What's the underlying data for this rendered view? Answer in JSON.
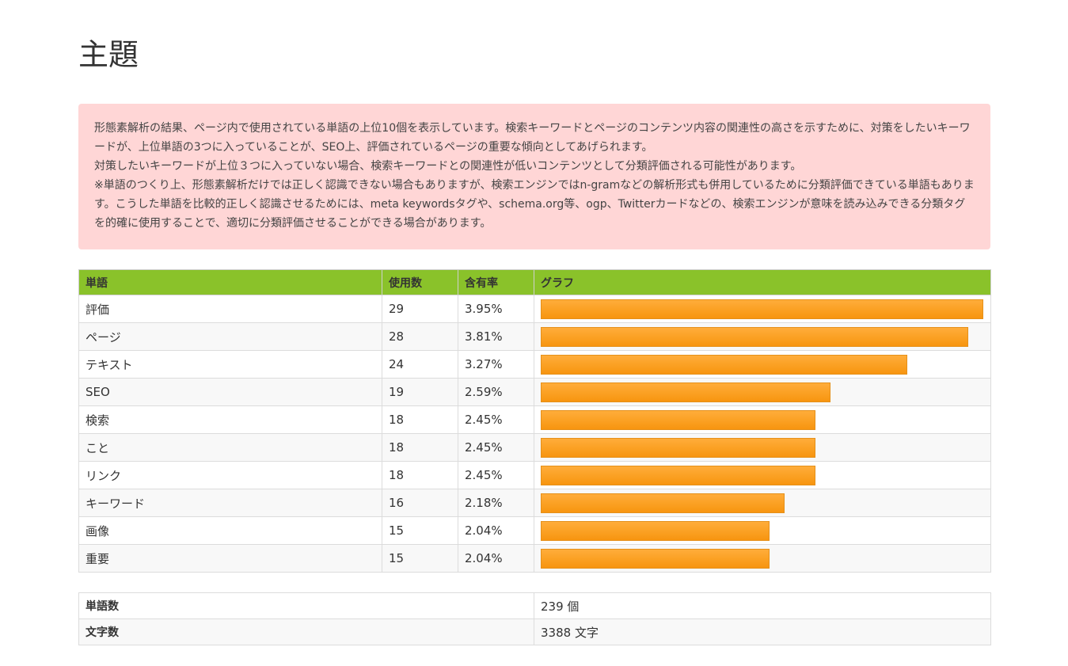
{
  "page": {
    "title": "主題"
  },
  "notice": {
    "paragraphs": [
      "形態素解析の結果、ページ内で使用されている単語の上位10個を表示しています。検索キーワードとページのコンテンツ内容の関連性の高さを示すために、対策をしたいキーワードが、上位単語の3つに入っていることが、SEO上、評価されているページの重要な傾向としてあげられます。",
      "対策したいキーワードが上位３つに入っていない場合、検索キーワードとの関連性が低いコンテンツとして分類評価される可能性があります。",
      "※単語のつくり上、形態素解析だけでは正しく認識できない場合もありますが、検索エンジンではn-gramなどの解析形式も併用しているために分類評価できている単語もあります。こうした単語を比較的正しく認識させるためには、meta keywordsタグや、schema.org等、ogp、Twitterカードなどの、検索エンジンが意味を読み込みできる分類タグを的確に使用することで、適切に分類評価させることができる場合があります。"
    ]
  },
  "word_table": {
    "headers": {
      "word": "単語",
      "count": "使用数",
      "rate": "含有率",
      "graph": "グラフ"
    },
    "bar_color": "#f7950f",
    "header_color": "#8ac22a",
    "rows": [
      {
        "word": "評価",
        "count": "29",
        "rate": "3.95%",
        "value": 29
      },
      {
        "word": "ページ",
        "count": "28",
        "rate": "3.81%",
        "value": 28
      },
      {
        "word": "テキスト",
        "count": "24",
        "rate": "3.27%",
        "value": 24
      },
      {
        "word": "SEO",
        "count": "19",
        "rate": "2.59%",
        "value": 19
      },
      {
        "word": "検索",
        "count": "18",
        "rate": "2.45%",
        "value": 18
      },
      {
        "word": "こと",
        "count": "18",
        "rate": "2.45%",
        "value": 18
      },
      {
        "word": "リンク",
        "count": "18",
        "rate": "2.45%",
        "value": 18
      },
      {
        "word": "キーワード",
        "count": "16",
        "rate": "2.18%",
        "value": 16
      },
      {
        "word": "画像",
        "count": "15",
        "rate": "2.04%",
        "value": 15
      },
      {
        "word": "重要",
        "count": "15",
        "rate": "2.04%",
        "value": 15
      }
    ]
  },
  "summary": {
    "word_count_label": "単語数",
    "word_count_value": "239 個",
    "char_count_label": "文字数",
    "char_count_value": "3388 文字"
  }
}
